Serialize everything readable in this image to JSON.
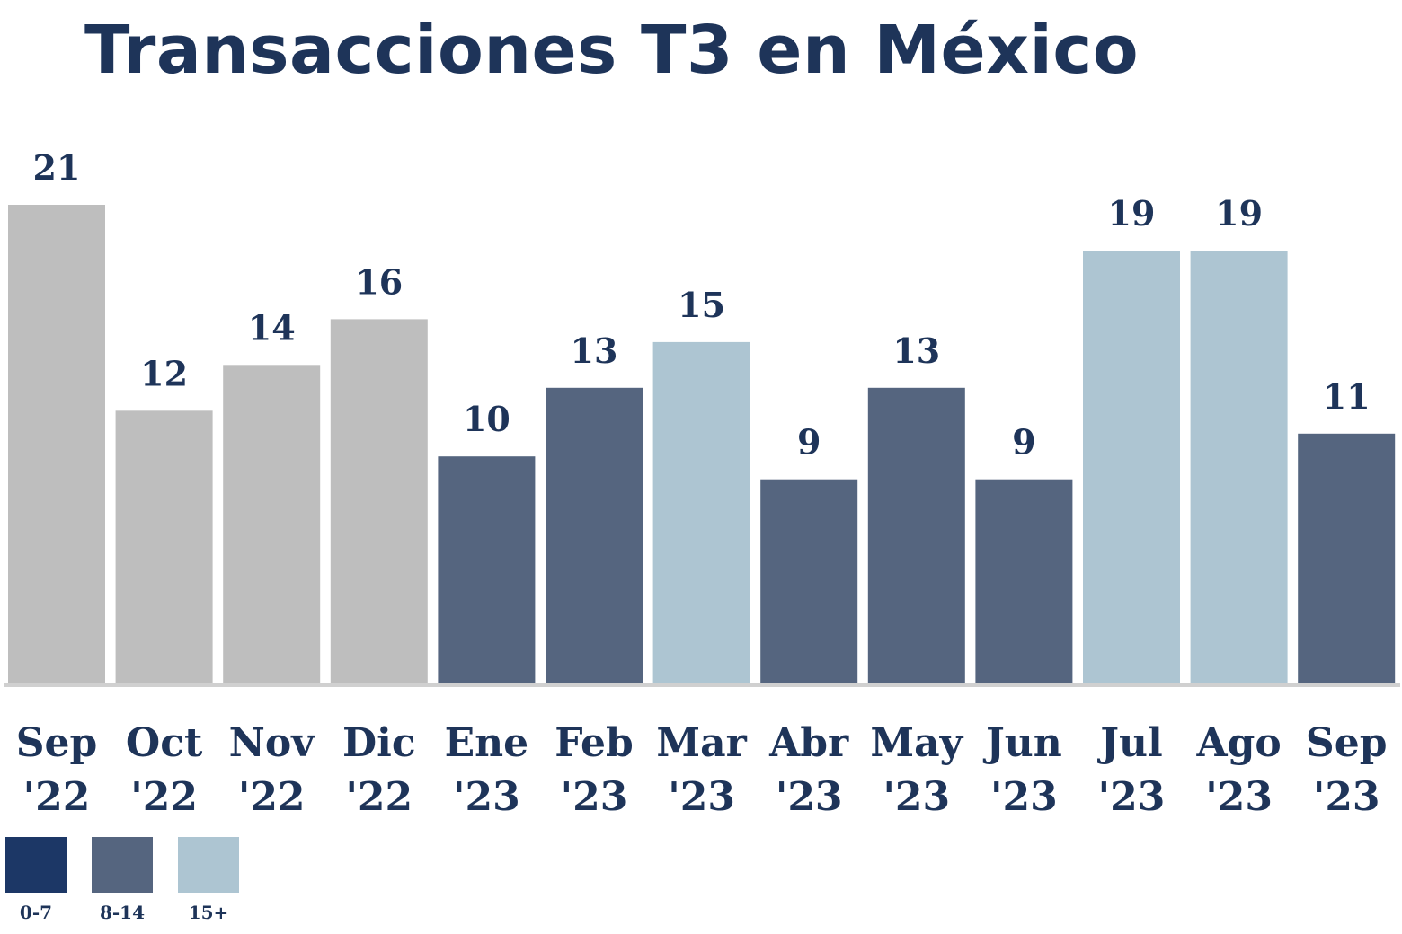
{
  "chart_data": {
    "type": "bar",
    "title": "Transacciones T3 en México",
    "xlabel": "",
    "ylabel": "",
    "categories": [
      [
        "Sep",
        "'22"
      ],
      [
        "Oct",
        "'22"
      ],
      [
        "Nov",
        "'22"
      ],
      [
        "Dic",
        "'22"
      ],
      [
        "Ene",
        "'23"
      ],
      [
        "Feb",
        "'23"
      ],
      [
        "Mar",
        "'23"
      ],
      [
        "Abr",
        "'23"
      ],
      [
        "May",
        "'23"
      ],
      [
        "Jun",
        "'23"
      ],
      [
        "Jul",
        "'23"
      ],
      [
        "Ago",
        "'23"
      ],
      [
        "Sep",
        "'23"
      ]
    ],
    "values": [
      21,
      12,
      14,
      16,
      10,
      13,
      15,
      9,
      13,
      9,
      19,
      19,
      11
    ],
    "bar_colors": [
      "#bebebe",
      "#bebebe",
      "#bebebe",
      "#bebebe",
      "#55657f",
      "#55657f",
      "#adc5d2",
      "#55657f",
      "#55657f",
      "#55657f",
      "#adc5d2",
      "#adc5d2",
      "#55657f"
    ],
    "ylim": [
      0,
      21
    ],
    "grid": false,
    "legend_position": "bottom-left",
    "legend": [
      {
        "label": "0-7",
        "color": "#1c3766"
      },
      {
        "label": "8-14",
        "color": "#55657f"
      },
      {
        "label": "15+",
        "color": "#adc5d2"
      }
    ],
    "axis_color": "#d0d0d0"
  }
}
